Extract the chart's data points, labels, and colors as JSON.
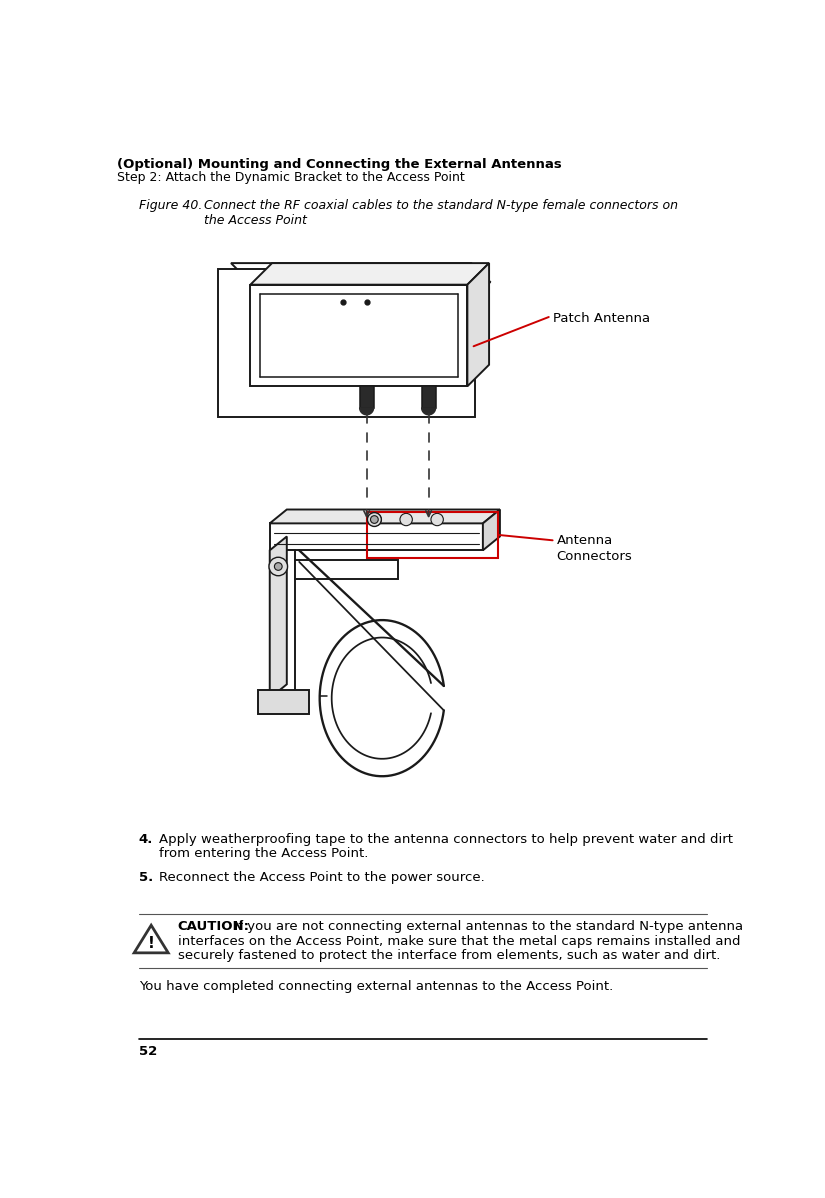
{
  "header_bold": "(Optional) Mounting and Connecting the External Antennas",
  "header_sub": "Step 2: Attach the Dynamic Bracket to the Access Point",
  "figure_label": "Figure 40.",
  "figure_caption_line1": "Connect the RF coaxial cables to the standard N-type female connectors on",
  "figure_caption_line2": "the Access Point",
  "label_patch_antenna": "Patch Antenna",
  "label_antenna_connectors_line1": "Antenna",
  "label_antenna_connectors_line2": "Connectors",
  "step4_bold": "4.",
  "step4_text_line1": "Apply weatherproofing tape to the antenna connectors to help prevent water and dirt",
  "step4_text_line2": "from entering the Access Point.",
  "step5_bold": "5.",
  "step5_text": "Reconnect the Access Point to the power source.",
  "caution_bold": "CAUTION:",
  "caution_text_line1": "  If you are not connecting external antennas to the standard N-type antenna",
  "caution_text_line2": "interfaces on the Access Point, make sure that the metal caps remains installed and",
  "caution_text_line3": "securely fastened to protect the interface from elements, such as water and dirt.",
  "footer_text": "You have completed connecting external antennas to the Access Point.",
  "page_number": "52",
  "bg_color": "#ffffff",
  "text_color": "#000000",
  "red_color": "#cc0000",
  "line_color": "#1a1a1a",
  "lw": 1.4
}
